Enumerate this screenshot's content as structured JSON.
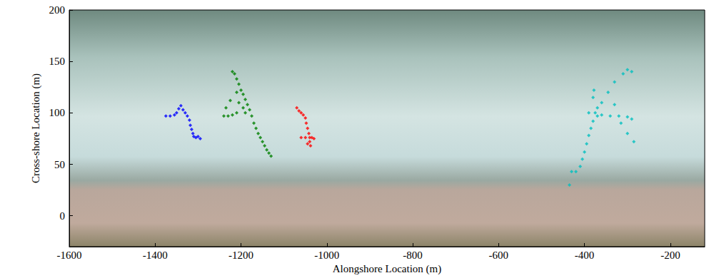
{
  "chart_data": {
    "type": "scatter",
    "x_label": "Alongshore Location (m)",
    "y_label": "Cross-shore Location (m)",
    "xlim": [
      -1600,
      -120
    ],
    "ylim": [
      -30,
      200
    ],
    "xticks": [
      -1600,
      -1400,
      -1200,
      -1000,
      -800,
      -600,
      -400,
      -200
    ],
    "yticks": [
      0,
      50,
      100,
      150,
      200
    ],
    "grid": false,
    "marker": "diamond",
    "series": [
      {
        "color": "#0000ff",
        "values": [
          [
            -1375,
            97
          ],
          [
            -1365,
            97
          ],
          [
            -1355,
            98
          ],
          [
            -1350,
            100
          ],
          [
            -1345,
            104
          ],
          [
            -1340,
            107
          ],
          [
            -1335,
            103
          ],
          [
            -1330,
            100
          ],
          [
            -1325,
            97
          ],
          [
            -1320,
            93
          ],
          [
            -1318,
            88
          ],
          [
            -1315,
            84
          ],
          [
            -1312,
            80
          ],
          [
            -1310,
            77
          ],
          [
            -1305,
            76
          ],
          [
            -1300,
            77
          ],
          [
            -1295,
            75
          ]
        ]
      },
      {
        "color": "#008000",
        "values": [
          [
            -1220,
            140
          ],
          [
            -1215,
            138
          ],
          [
            -1210,
            133
          ],
          [
            -1205,
            128
          ],
          [
            -1200,
            122
          ],
          [
            -1195,
            118
          ],
          [
            -1190,
            113
          ],
          [
            -1185,
            108
          ],
          [
            -1180,
            103
          ],
          [
            -1175,
            97
          ],
          [
            -1170,
            90
          ],
          [
            -1165,
            85
          ],
          [
            -1160,
            80
          ],
          [
            -1155,
            76
          ],
          [
            -1150,
            72
          ],
          [
            -1145,
            68
          ],
          [
            -1140,
            64
          ],
          [
            -1135,
            61
          ],
          [
            -1130,
            58
          ],
          [
            -1240,
            97
          ],
          [
            -1230,
            97
          ],
          [
            -1220,
            98
          ],
          [
            -1210,
            100
          ],
          [
            -1205,
            110
          ],
          [
            -1210,
            120
          ],
          [
            -1195,
            105
          ],
          [
            -1190,
            100
          ],
          [
            -1235,
            105
          ],
          [
            -1225,
            112
          ]
        ]
      },
      {
        "color": "#ff0000",
        "values": [
          [
            -1070,
            105
          ],
          [
            -1065,
            102
          ],
          [
            -1060,
            100
          ],
          [
            -1055,
            98
          ],
          [
            -1050,
            95
          ],
          [
            -1048,
            90
          ],
          [
            -1045,
            85
          ],
          [
            -1042,
            80
          ],
          [
            -1040,
            76
          ],
          [
            -1050,
            76
          ],
          [
            -1060,
            76
          ],
          [
            -1035,
            76
          ],
          [
            -1030,
            75
          ],
          [
            -1040,
            72
          ],
          [
            -1038,
            68
          ],
          [
            -1045,
            70
          ]
        ]
      },
      {
        "color": "#00bfbf",
        "values": [
          [
            -435,
            30
          ],
          [
            -430,
            43
          ],
          [
            -420,
            43
          ],
          [
            -410,
            48
          ],
          [
            -405,
            55
          ],
          [
            -400,
            62
          ],
          [
            -395,
            70
          ],
          [
            -390,
            78
          ],
          [
            -385,
            85
          ],
          [
            -380,
            92
          ],
          [
            -375,
            100
          ],
          [
            -370,
            105
          ],
          [
            -380,
            115
          ],
          [
            -378,
            122
          ],
          [
            -360,
            98
          ],
          [
            -340,
            97
          ],
          [
            -320,
            97
          ],
          [
            -300,
            96
          ],
          [
            -290,
            94
          ],
          [
            -360,
            110
          ],
          [
            -345,
            120
          ],
          [
            -330,
            130
          ],
          [
            -310,
            138
          ],
          [
            -300,
            142
          ],
          [
            -290,
            140
          ],
          [
            -330,
            108
          ],
          [
            -315,
            90
          ],
          [
            -300,
            80
          ],
          [
            -285,
            72
          ],
          [
            -390,
            100
          ],
          [
            -370,
            97
          ]
        ]
      }
    ]
  }
}
